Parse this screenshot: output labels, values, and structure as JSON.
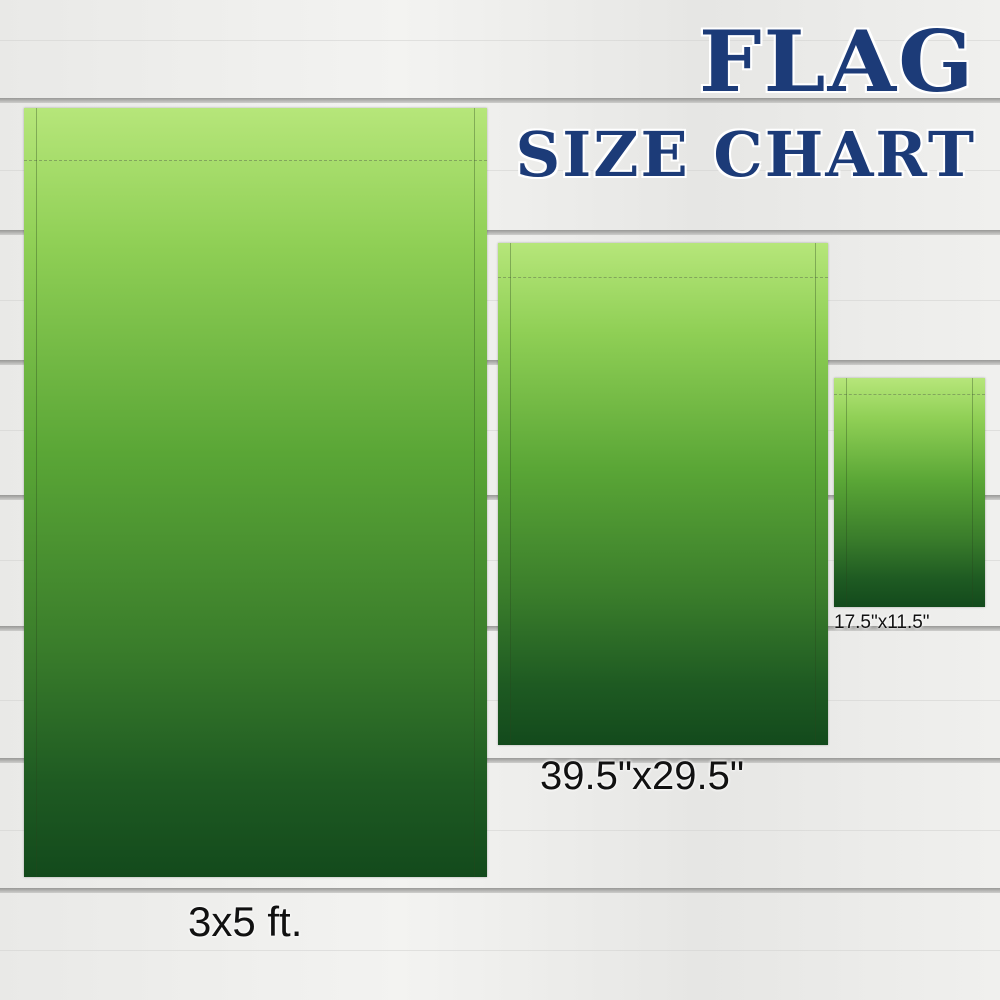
{
  "title": {
    "line1": "FLAG",
    "line2": "SIZE CHART",
    "color": "#1c3b78"
  },
  "flags": [
    {
      "label": "3x5 ft."
    },
    {
      "label": "39.5\"x29.5\""
    },
    {
      "label": "17.5\"x11.5\""
    }
  ],
  "flag_gradient": {
    "top": "#b6e67a",
    "bottom": "#134a1c"
  }
}
